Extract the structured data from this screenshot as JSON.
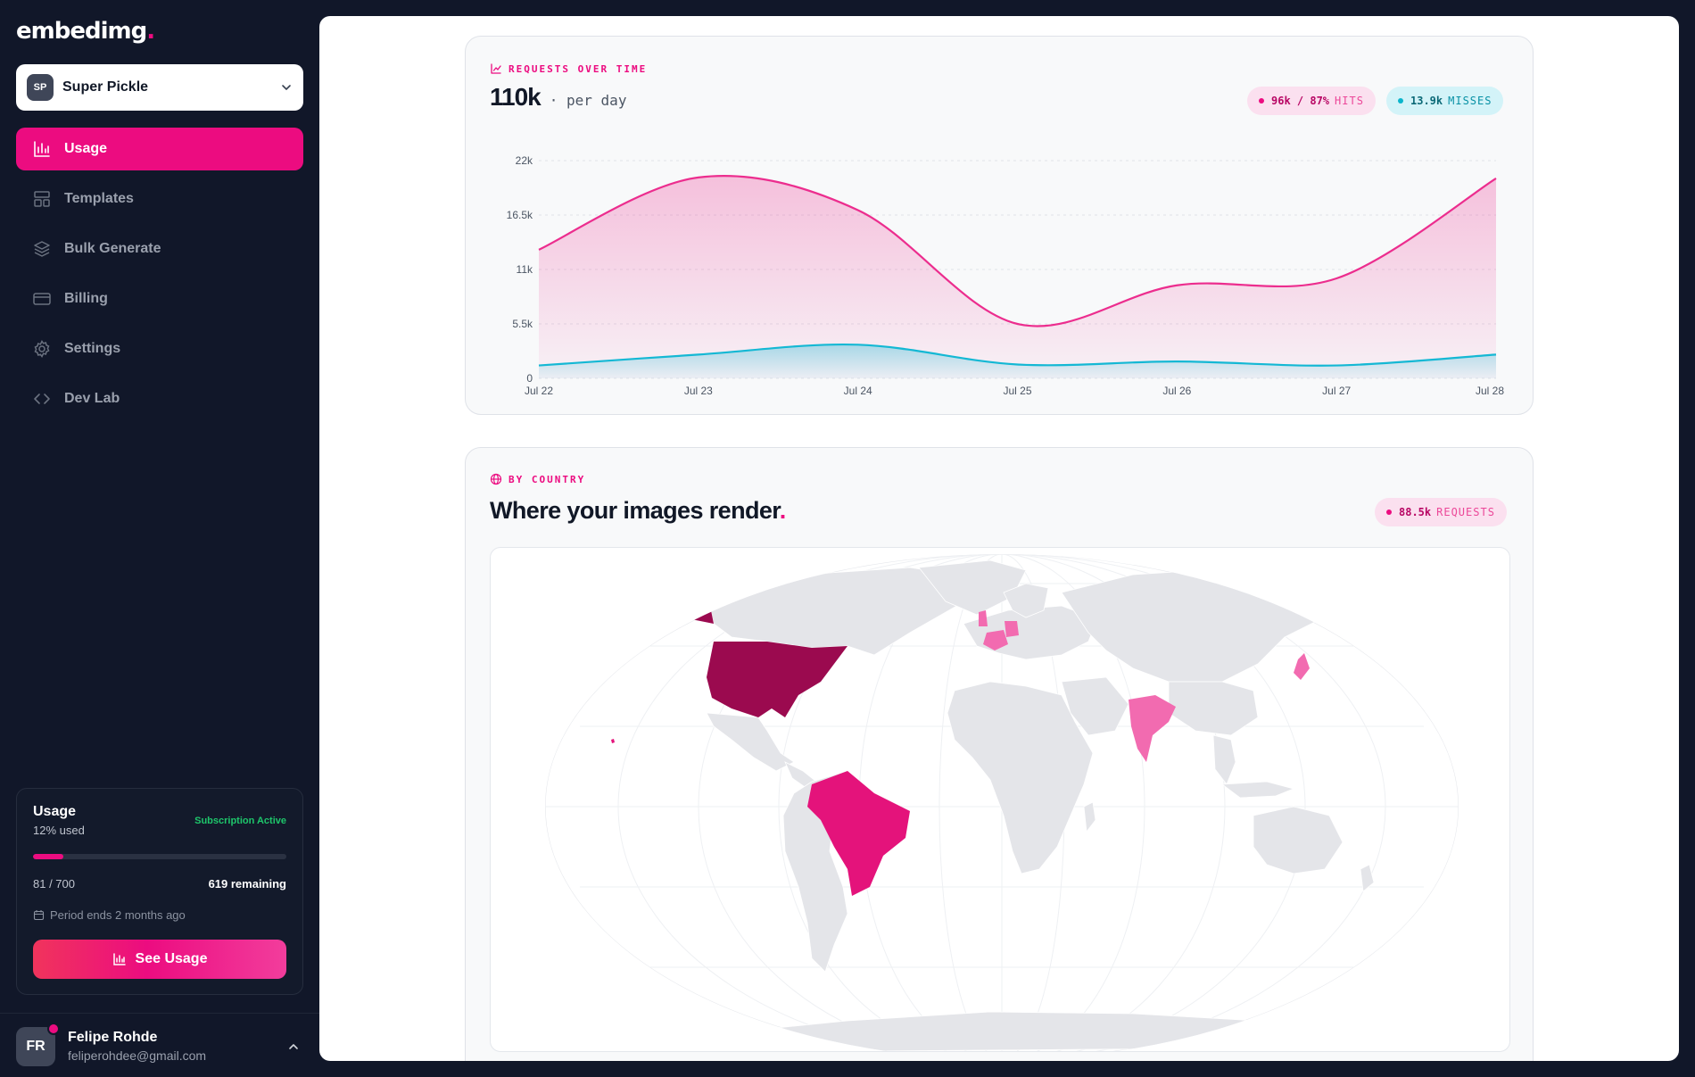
{
  "app": {
    "logo": "embedimg",
    "logo_dot": "."
  },
  "team": {
    "initials": "SP",
    "name": "Super Pickle"
  },
  "nav": {
    "items": [
      {
        "label": "Usage",
        "icon": "bar-chart-icon",
        "active": true
      },
      {
        "label": "Templates",
        "icon": "layout-icon",
        "active": false
      },
      {
        "label": "Bulk Generate",
        "icon": "layers-icon",
        "active": false
      },
      {
        "label": "Billing",
        "icon": "credit-card-icon",
        "active": false
      },
      {
        "label": "Settings",
        "icon": "gear-icon",
        "active": false
      },
      {
        "label": "Dev Lab",
        "icon": "code-icon",
        "active": false
      }
    ]
  },
  "usage_card": {
    "title": "Usage",
    "percent_label": "12% used",
    "status": "Subscription Active",
    "used_fraction": 0.12,
    "count": "81 / 700",
    "remaining": "619 remaining",
    "period": "Period ends 2 months ago",
    "button": "See Usage"
  },
  "user": {
    "initials": "FR",
    "name": "Felipe Rohde",
    "email": "feliperohdee@gmail.com"
  },
  "requests": {
    "eyebrow": "REQUESTS OVER TIME",
    "total": "110k",
    "unit": "· per day",
    "hits_value": "96k / 87%",
    "hits_label": "HITS",
    "misses_value": "13.9k",
    "misses_label": "MISSES"
  },
  "chart_data": {
    "type": "area",
    "x": [
      "Jul 22",
      "Jul 23",
      "Jul 24",
      "Jul 25",
      "Jul 26",
      "Jul 27",
      "Jul 28"
    ],
    "y_ticks": [
      "0",
      "5.5k",
      "11k",
      "16.5k",
      "22k"
    ],
    "ylim": [
      0,
      22000
    ],
    "grid": true,
    "series": [
      {
        "name": "HITS",
        "color": "#ec2d8e",
        "values": [
          13000,
          20300,
          17000,
          5500,
          9400,
          10100,
          20200
        ]
      },
      {
        "name": "MISSES",
        "color": "#14b8d4",
        "values": [
          1300,
          2400,
          3400,
          1400,
          1700,
          1300,
          2400
        ]
      }
    ]
  },
  "country": {
    "eyebrow": "BY COUNTRY",
    "heading": "Where your images render",
    "heading_dot": ".",
    "requests_value": "88.5k",
    "requests_label": "REQUESTS",
    "colors": {
      "land": "#e4e5e9",
      "high": "#9b0a4f",
      "mid": "#e4137b",
      "low": "#f26bb0"
    },
    "highlighted": [
      {
        "country": "United States",
        "level": "high"
      },
      {
        "country": "Alaska",
        "level": "high"
      },
      {
        "country": "Brazil",
        "level": "mid"
      },
      {
        "country": "India",
        "level": "low"
      },
      {
        "country": "France",
        "level": "low"
      },
      {
        "country": "United Kingdom",
        "level": "low"
      },
      {
        "country": "Germany",
        "level": "low"
      },
      {
        "country": "Japan",
        "level": "low"
      }
    ]
  }
}
